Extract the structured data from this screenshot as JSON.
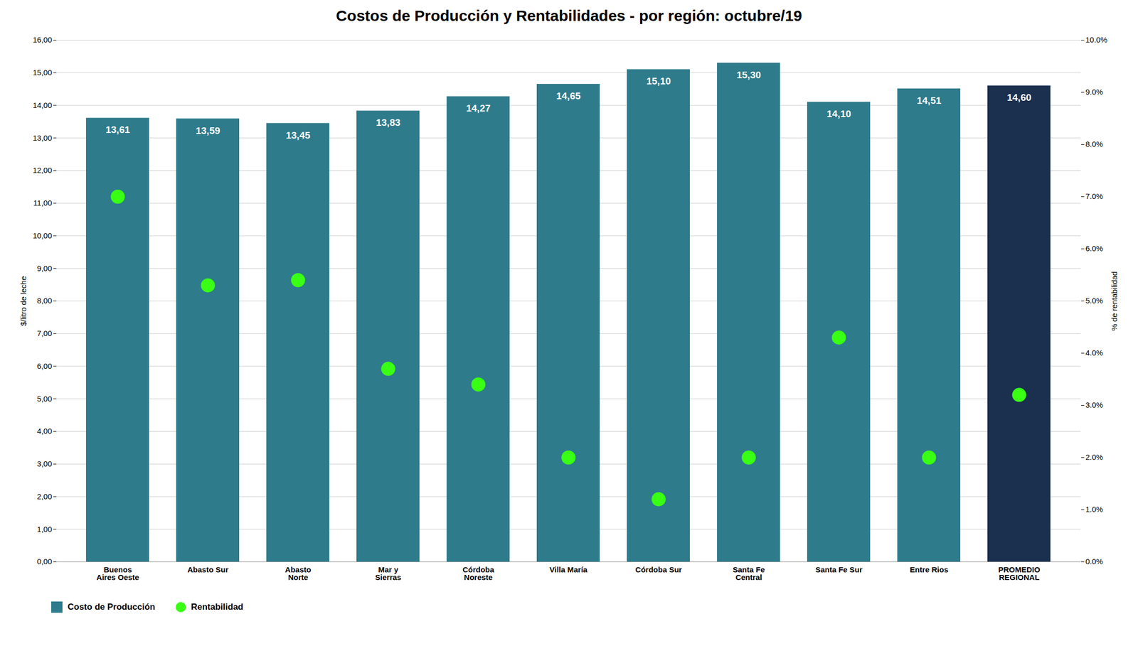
{
  "chart_data": {
    "type": "bar",
    "title": "Costos de Producción y Rentabilidades - por región: octubre/19",
    "categories": [
      "Buenos\nAires Oeste",
      "Abasto Sur",
      "Abasto\nNorte",
      "Mar y\nSierras",
      "Córdoba\nNoreste",
      "Villa María",
      "Córdoba Sur",
      "Santa Fe\nCentral",
      "Santa Fe Sur",
      "Entre Rios",
      "PROMEDIO\nREGIONAL"
    ],
    "series": [
      {
        "name": "Costo de Producción",
        "type": "bar",
        "colors": [
          "#2E7B8C",
          "#2E7B8C",
          "#2E7B8C",
          "#2E7B8C",
          "#2E7B8C",
          "#2E7B8C",
          "#2E7B8C",
          "#2E7B8C",
          "#2E7B8C",
          "#2E7B8C",
          "#1B2F4E"
        ],
        "values": [
          13.61,
          13.59,
          13.45,
          13.83,
          14.27,
          14.65,
          15.1,
          15.3,
          14.1,
          14.51,
          14.6
        ],
        "value_labels": [
          "13,61",
          "13,59",
          "13,45",
          "13,83",
          "14,27",
          "14,65",
          "15,10",
          "15,30",
          "14,10",
          "14,51",
          "14,60"
        ]
      },
      {
        "name": "Rentabilidad",
        "type": "scatter",
        "axis": "y2",
        "color": "#39FF14",
        "marker": "o",
        "values": [
          7.0,
          5.3,
          5.4,
          3.7,
          3.4,
          2.0,
          1.2,
          2.0,
          4.3,
          2.0,
          3.2
        ]
      }
    ],
    "ylabel": "$/litro de leche",
    "y2label": "% de rentabilidad",
    "ylim": [
      0,
      16
    ],
    "yticks": [
      {
        "value": 0,
        "label": "0,00"
      },
      {
        "value": 1,
        "label": "1,00"
      },
      {
        "value": 2,
        "label": "2,00"
      },
      {
        "value": 3,
        "label": "3,00"
      },
      {
        "value": 4,
        "label": "4,00"
      },
      {
        "value": 5,
        "label": "5,00"
      },
      {
        "value": 6,
        "label": "6,00"
      },
      {
        "value": 7,
        "label": "7,00"
      },
      {
        "value": 8,
        "label": "8,00"
      },
      {
        "value": 9,
        "label": "9,00"
      },
      {
        "value": 10,
        "label": "10,00"
      },
      {
        "value": 11,
        "label": "11,00"
      },
      {
        "value": 12,
        "label": "12,00"
      },
      {
        "value": 13,
        "label": "13,00"
      },
      {
        "value": 14,
        "label": "14,00"
      },
      {
        "value": 15,
        "label": "15,00"
      },
      {
        "value": 16,
        "label": "16,00"
      }
    ],
    "y2lim": [
      0,
      10
    ],
    "y2ticks": [
      {
        "value": 0,
        "label": "0.0%"
      },
      {
        "value": 1,
        "label": "1.0%"
      },
      {
        "value": 2,
        "label": "2.0%"
      },
      {
        "value": 3,
        "label": "3.0%"
      },
      {
        "value": 4,
        "label": "4.0%"
      },
      {
        "value": 5,
        "label": "5.0%"
      },
      {
        "value": 6,
        "label": "6.0%"
      },
      {
        "value": 7,
        "label": "7.0%"
      },
      {
        "value": 8,
        "label": "8.0%"
      },
      {
        "value": 9,
        "label": "9.0%"
      },
      {
        "value": 10,
        "label": "10.0%"
      }
    ],
    "grid": true,
    "legend": "lower left",
    "data_labels": true
  }
}
